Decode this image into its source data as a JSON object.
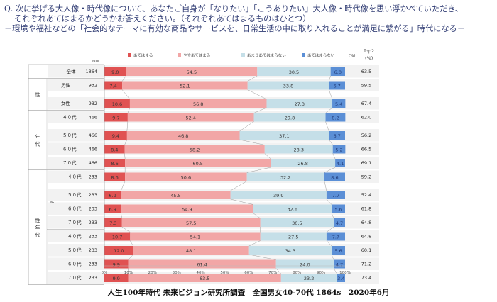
{
  "question": {
    "line1": "Q. 次に挙げる大人像・時代像について、あなたご自身が「なりたい」「こうありたい」大人像・時代像を思い浮かべていただき、",
    "line2": "それぞれあてはまるかどうかお答えください。（それぞれあてはまるものはひとつ）",
    "line3": "－環境や福祉などの「社会的なテーマに有効な商品やサービスを、日常生活の中に取り入れることが満足に繋がる」時代になる－"
  },
  "footer": "人生100年時代 未来ビジョン研究所調査　全国男女40-70代 1864s　2020年6月",
  "colors": {
    "s1": "#e05252",
    "s2": "#f2a6a6",
    "s3": "#c5dfe8",
    "s4": "#5b8fd6",
    "rowbg": "#f2f2f2",
    "line": "#9a9a9a"
  },
  "chart_data": {
    "type": "bar",
    "stacked": true,
    "orientation": "horizontal",
    "n_header": "n=",
    "top2_header": "Top2\n(%)",
    "pct_label": "(%)",
    "x_ticks": [
      "0%",
      "10%",
      "20%",
      "30%",
      "40%",
      "50%",
      "60%",
      "70%",
      "80%",
      "90%",
      "100%"
    ],
    "xlim": [
      0,
      100
    ],
    "legend": [
      "あてはまる",
      "ややあてはまる",
      "あまりあてはまらない",
      "あてはまらない"
    ],
    "groups": [
      {
        "label": "",
        "rows": [
          0
        ]
      },
      {
        "label": "性",
        "rows": [
          1,
          2
        ]
      },
      {
        "label": "年代",
        "rows": [
          3,
          4,
          5,
          6
        ]
      },
      {
        "label": "性年代",
        "rows": [
          7,
          8,
          9,
          10,
          11,
          12,
          13,
          14
        ],
        "sub": [
          {
            "label": "男性",
            "rows": [
              7,
              8,
              9,
              10
            ]
          },
          {
            "label": "女性",
            "rows": [
              11,
              12,
              13,
              14
            ]
          }
        ]
      }
    ],
    "categories": [
      "全体",
      "男性",
      "女性",
      "４０代",
      "５０代",
      "６０代",
      "７０代",
      "４０代",
      "５０代",
      "６０代",
      "７０代",
      "４０代",
      "５０代",
      "６０代",
      "７０代"
    ],
    "n": [
      1864,
      932,
      932,
      466,
      466,
      466,
      466,
      233,
      233,
      233,
      233,
      233,
      233,
      233,
      233
    ],
    "series": [
      {
        "name": "あてはまる",
        "values": [
          9.0,
          7.4,
          10.6,
          9.7,
          9.4,
          8.4,
          8.6,
          8.6,
          6.9,
          6.9,
          7.3,
          10.7,
          12.0,
          9.9,
          9.9
        ]
      },
      {
        "name": "ややあてはまる",
        "values": [
          54.5,
          52.1,
          56.8,
          52.4,
          46.8,
          58.2,
          60.5,
          50.6,
          45.5,
          54.9,
          57.5,
          54.1,
          48.1,
          61.4,
          63.5
        ]
      },
      {
        "name": "あまりあてはまらない",
        "values": [
          30.5,
          33.8,
          27.3,
          29.8,
          37.1,
          28.3,
          26.8,
          32.2,
          39.9,
          32.6,
          30.5,
          27.5,
          34.3,
          24.0,
          23.2
        ]
      },
      {
        "name": "あてはまらない",
        "values": [
          6.0,
          6.7,
          5.4,
          8.2,
          6.7,
          5.2,
          4.1,
          8.6,
          7.7,
          5.6,
          4.7,
          7.7,
          5.6,
          4.7,
          3.4
        ]
      }
    ],
    "top2": [
      63.5,
      59.5,
      67.4,
      62.0,
      56.2,
      66.5,
      69.1,
      59.2,
      52.4,
      61.8,
      64.8,
      64.8,
      60.1,
      71.2,
      73.4
    ]
  }
}
